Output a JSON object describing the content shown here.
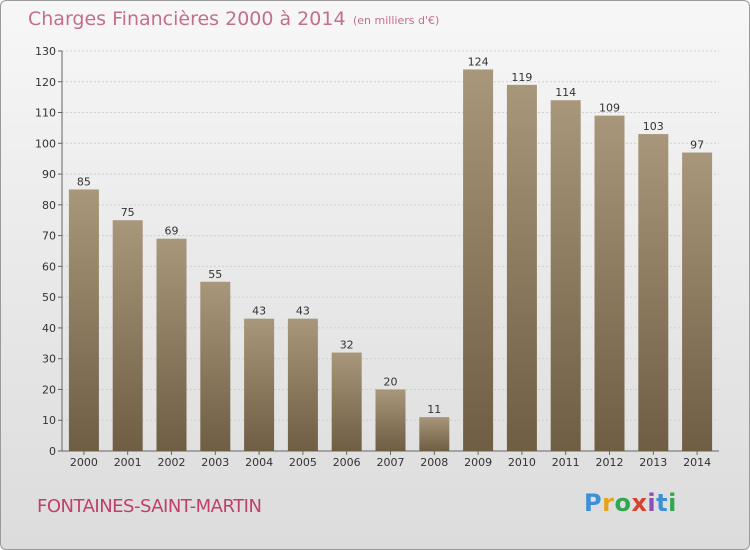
{
  "header": {
    "title": "Charges Financières 2000 à 2014",
    "subtitle": "(en milliers d'€)"
  },
  "footer": {
    "commune": "FONTAINES-SAINT-MARTIN",
    "logo_text": "Proxiti"
  },
  "colors": {
    "bar_top": "#a8977a",
    "bar_bottom": "#6f5d44",
    "title": "#c46f8a",
    "commune": "#c0406b"
  },
  "chart_data": {
    "type": "bar",
    "title": "Charges Financières 2000 à 2014",
    "subtitle": "(en milliers d'€)",
    "categories": [
      "2000",
      "2001",
      "2002",
      "2003",
      "2004",
      "2005",
      "2006",
      "2007",
      "2008",
      "2009",
      "2010",
      "2011",
      "2012",
      "2013",
      "2014"
    ],
    "values": [
      85,
      75,
      69,
      55,
      43,
      43,
      32,
      20,
      11,
      124,
      119,
      114,
      109,
      103,
      97
    ],
    "ylim": [
      0,
      130
    ],
    "yticks": [
      0,
      10,
      20,
      30,
      40,
      50,
      60,
      70,
      80,
      90,
      100,
      110,
      120,
      130
    ],
    "grid": true,
    "xlabel": "",
    "ylabel": ""
  }
}
